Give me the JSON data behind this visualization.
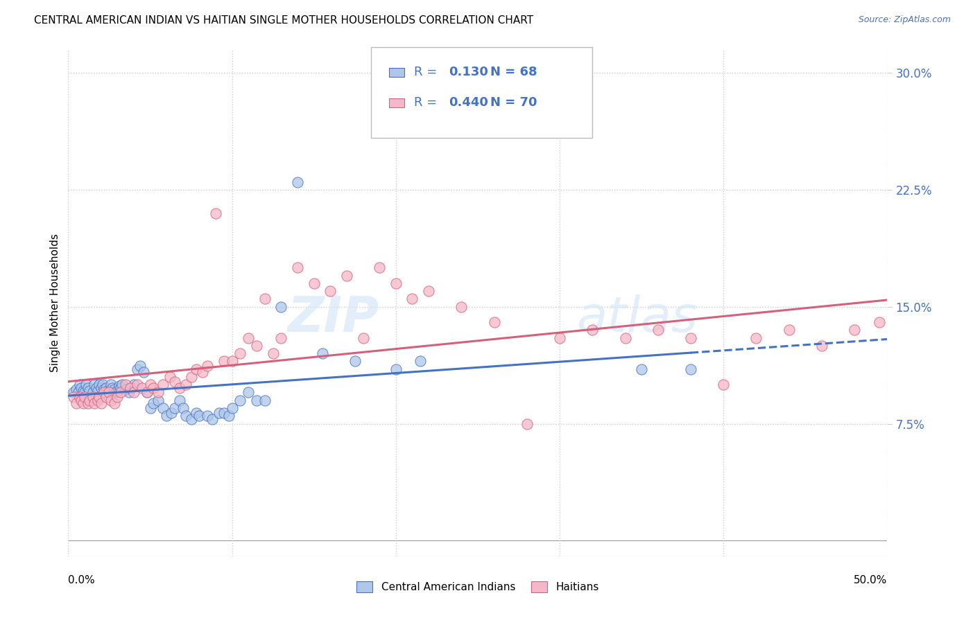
{
  "title": "CENTRAL AMERICAN INDIAN VS HAITIAN SINGLE MOTHER HOUSEHOLDS CORRELATION CHART",
  "source": "Source: ZipAtlas.com",
  "ylabel": "Single Mother Households",
  "xlim": [
    0.0,
    0.5
  ],
  "ylim": [
    -0.01,
    0.315
  ],
  "yticks": [
    0.075,
    0.15,
    0.225,
    0.3
  ],
  "ytick_labels": [
    "7.5%",
    "15.0%",
    "22.5%",
    "30.0%"
  ],
  "xticks": [
    0.0,
    0.1,
    0.2,
    0.3,
    0.4,
    0.5
  ],
  "blue_R": 0.13,
  "blue_N": 68,
  "pink_R": 0.44,
  "pink_N": 70,
  "blue_color": "#aec6e8",
  "pink_color": "#f4b8c8",
  "blue_line_color": "#4472c4",
  "pink_line_color": "#d4607a",
  "legend_blue_label": "Central American Indians",
  "legend_pink_label": "Haitians",
  "watermark_zip": "ZIP",
  "watermark_atlas": "atlas",
  "legend_text_color": "#4472c4",
  "blue_scatter_x": [
    0.003,
    0.005,
    0.006,
    0.007,
    0.008,
    0.009,
    0.01,
    0.011,
    0.012,
    0.013,
    0.015,
    0.016,
    0.017,
    0.018,
    0.019,
    0.02,
    0.021,
    0.022,
    0.023,
    0.024,
    0.025,
    0.026,
    0.027,
    0.028,
    0.029,
    0.03,
    0.031,
    0.032,
    0.033,
    0.035,
    0.037,
    0.038,
    0.04,
    0.042,
    0.044,
    0.046,
    0.048,
    0.05,
    0.052,
    0.055,
    0.058,
    0.06,
    0.063,
    0.065,
    0.068,
    0.07,
    0.072,
    0.075,
    0.078,
    0.08,
    0.085,
    0.088,
    0.092,
    0.095,
    0.098,
    0.1,
    0.105,
    0.11,
    0.115,
    0.12,
    0.13,
    0.14,
    0.155,
    0.175,
    0.2,
    0.215,
    0.35,
    0.38
  ],
  "blue_scatter_y": [
    0.095,
    0.097,
    0.095,
    0.1,
    0.098,
    0.096,
    0.095,
    0.1,
    0.098,
    0.096,
    0.095,
    0.1,
    0.098,
    0.096,
    0.1,
    0.098,
    0.1,
    0.097,
    0.098,
    0.096,
    0.095,
    0.1,
    0.098,
    0.097,
    0.095,
    0.096,
    0.099,
    0.098,
    0.1,
    0.097,
    0.095,
    0.098,
    0.1,
    0.11,
    0.112,
    0.108,
    0.095,
    0.085,
    0.088,
    0.09,
    0.085,
    0.08,
    0.082,
    0.085,
    0.09,
    0.085,
    0.08,
    0.078,
    0.082,
    0.08,
    0.08,
    0.078,
    0.082,
    0.082,
    0.08,
    0.085,
    0.09,
    0.095,
    0.09,
    0.09,
    0.15,
    0.23,
    0.12,
    0.115,
    0.11,
    0.115,
    0.11,
    0.11
  ],
  "pink_scatter_x": [
    0.003,
    0.005,
    0.007,
    0.008,
    0.009,
    0.01,
    0.012,
    0.013,
    0.015,
    0.016,
    0.018,
    0.019,
    0.02,
    0.022,
    0.023,
    0.025,
    0.026,
    0.028,
    0.03,
    0.032,
    0.035,
    0.038,
    0.04,
    0.042,
    0.045,
    0.048,
    0.05,
    0.052,
    0.055,
    0.058,
    0.062,
    0.065,
    0.068,
    0.072,
    0.075,
    0.078,
    0.082,
    0.085,
    0.09,
    0.095,
    0.1,
    0.105,
    0.11,
    0.115,
    0.12,
    0.125,
    0.13,
    0.14,
    0.15,
    0.16,
    0.17,
    0.18,
    0.19,
    0.2,
    0.21,
    0.22,
    0.24,
    0.26,
    0.28,
    0.3,
    0.32,
    0.34,
    0.36,
    0.38,
    0.4,
    0.42,
    0.44,
    0.46,
    0.48,
    0.495
  ],
  "pink_scatter_y": [
    0.092,
    0.088,
    0.092,
    0.09,
    0.088,
    0.092,
    0.088,
    0.09,
    0.092,
    0.088,
    0.09,
    0.092,
    0.088,
    0.095,
    0.092,
    0.095,
    0.09,
    0.088,
    0.092,
    0.095,
    0.1,
    0.098,
    0.095,
    0.1,
    0.098,
    0.095,
    0.1,
    0.098,
    0.095,
    0.1,
    0.105,
    0.102,
    0.098,
    0.1,
    0.105,
    0.11,
    0.108,
    0.112,
    0.21,
    0.115,
    0.115,
    0.12,
    0.13,
    0.125,
    0.155,
    0.12,
    0.13,
    0.175,
    0.165,
    0.16,
    0.17,
    0.13,
    0.175,
    0.165,
    0.155,
    0.16,
    0.15,
    0.14,
    0.075,
    0.13,
    0.135,
    0.13,
    0.135,
    0.13,
    0.1,
    0.13,
    0.135,
    0.125,
    0.135,
    0.14
  ]
}
